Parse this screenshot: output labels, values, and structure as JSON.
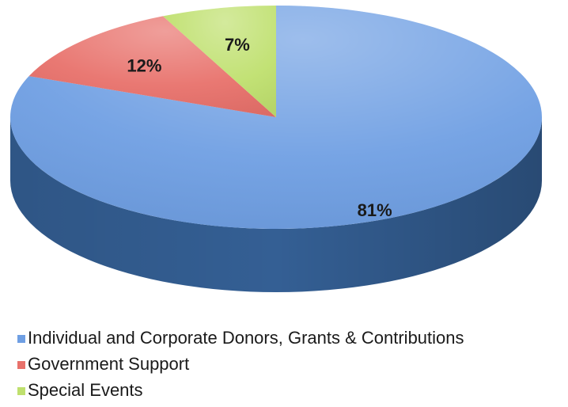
{
  "chart_data": {
    "type": "pie",
    "style": "3d",
    "slices": [
      {
        "name": "Individual and Corporate Donors, Grants & Contributions",
        "value": 81,
        "label": "81%",
        "color": "#6f9fe3",
        "side_color": "#345f94"
      },
      {
        "name": "Government Support",
        "value": 12,
        "label": "12%",
        "color": "#e8716b",
        "side_color": "#a94843"
      },
      {
        "name": "Special Events",
        "value": 7,
        "label": "7%",
        "color": "#bfe06e",
        "side_color": "#86a63f"
      }
    ],
    "legend_placement": "bottom-left"
  }
}
